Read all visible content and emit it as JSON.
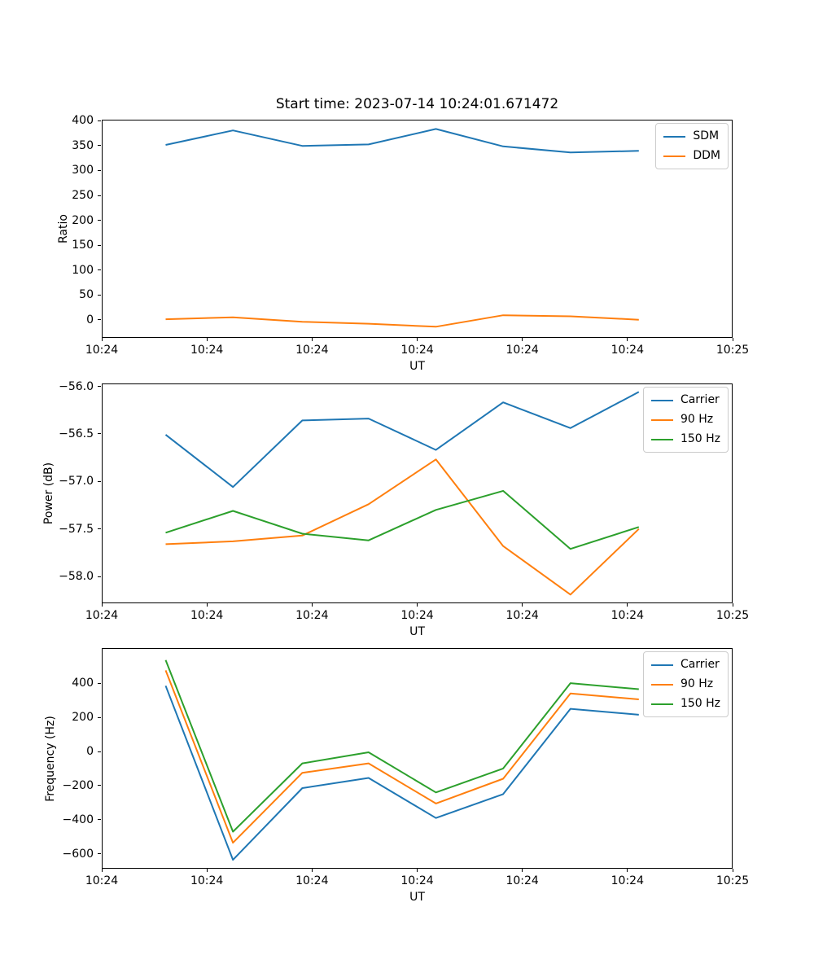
{
  "figure": {
    "title": "Start time: 2023-07-14 10:24:01.671472",
    "background_color": "#ffffff",
    "palette": {
      "blue": "#1f77b4",
      "orange": "#ff7f0e",
      "green": "#2ca02c"
    }
  },
  "chart_data": [
    {
      "type": "line",
      "title": "Start time: 2023-07-14 10:24:01.671472",
      "xlabel": "UT",
      "ylabel": "Ratio",
      "grid": false,
      "legend_position": "upper right",
      "legend": [
        "SDM",
        "DDM"
      ],
      "xlim": [
        0,
        60
      ],
      "x_tick_values": [
        0,
        10,
        20,
        30,
        40,
        50,
        60
      ],
      "x_tick_labels": [
        "10:24",
        "10:24",
        "10:24",
        "10:24",
        "10:24",
        "10:24",
        "10:25"
      ],
      "ylim": [
        -36,
        402
      ],
      "y_tick_values": [
        0,
        50,
        100,
        150,
        200,
        250,
        300,
        350,
        400
      ],
      "y_tick_labels": [
        "0",
        "50",
        "100",
        "150",
        "200",
        "250",
        "300",
        "350",
        "400"
      ],
      "x_values_seconds": [
        6.0,
        12.4,
        19.0,
        25.3,
        31.7,
        38.1,
        44.5,
        51.0
      ],
      "series": [
        {
          "name": "SDM",
          "color": "#1f77b4",
          "values": [
            353,
            382,
            351,
            354,
            385,
            350,
            338,
            341
          ]
        },
        {
          "name": "DDM",
          "color": "#ff7f0e",
          "values": [
            3,
            7,
            -2,
            -6,
            -12,
            11,
            9,
            2
          ]
        }
      ]
    },
    {
      "type": "line",
      "title": "",
      "xlabel": "UT",
      "ylabel": "Power (dB)",
      "grid": false,
      "legend_position": "upper right",
      "legend": [
        "Carrier",
        "90 Hz",
        "150 Hz"
      ],
      "xlim": [
        0,
        60
      ],
      "x_tick_values": [
        0,
        10,
        20,
        30,
        40,
        50,
        60
      ],
      "x_tick_labels": [
        "10:24",
        "10:24",
        "10:24",
        "10:24",
        "10:24",
        "10:24",
        "10:25"
      ],
      "ylim": [
        -58.28,
        -55.97
      ],
      "y_tick_values": [
        -56.0,
        -56.5,
        -57.0,
        -57.5,
        -58.0
      ],
      "y_tick_labels": [
        "−56.0",
        "−56.5",
        "−57.0",
        "−57.5",
        "−58.0"
      ],
      "x_values_seconds": [
        6.0,
        12.4,
        19.0,
        25.3,
        31.7,
        38.1,
        44.5,
        51.0
      ],
      "series": [
        {
          "name": "Carrier",
          "color": "#1f77b4",
          "values": [
            -56.5,
            -57.05,
            -56.35,
            -56.33,
            -56.66,
            -56.16,
            -56.43,
            -56.05
          ]
        },
        {
          "name": "90 Hz",
          "color": "#ff7f0e",
          "values": [
            -57.65,
            -57.62,
            -57.56,
            -57.23,
            -56.76,
            -57.67,
            -58.18,
            -57.49
          ]
        },
        {
          "name": "150 Hz",
          "color": "#2ca02c",
          "values": [
            -57.53,
            -57.3,
            -57.54,
            -57.61,
            -57.29,
            -57.09,
            -57.7,
            -57.47
          ]
        }
      ]
    },
    {
      "type": "line",
      "title": "",
      "xlabel": "UT",
      "ylabel": "Frequency (Hz)",
      "grid": false,
      "legend_position": "upper right",
      "legend": [
        "Carrier",
        "90 Hz",
        "150 Hz"
      ],
      "xlim": [
        0,
        60
      ],
      "x_tick_values": [
        0,
        10,
        20,
        30,
        40,
        50,
        60
      ],
      "x_tick_labels": [
        "10:24",
        "10:24",
        "10:24",
        "10:24",
        "10:24",
        "10:24",
        "10:25"
      ],
      "ylim": [
        -687,
        606
      ],
      "y_tick_values": [
        400,
        200,
        0,
        -200,
        -400,
        -600
      ],
      "y_tick_labels": [
        "400",
        "200",
        "0",
        "−200",
        "−400",
        "−600"
      ],
      "x_values_seconds": [
        6.0,
        12.4,
        19.0,
        25.3,
        31.7,
        38.1,
        44.5,
        51.0
      ],
      "series": [
        {
          "name": "Carrier",
          "color": "#1f77b4",
          "values": [
            390,
            -630,
            -210,
            -150,
            -385,
            -245,
            255,
            220
          ]
        },
        {
          "name": "90 Hz",
          "color": "#ff7f0e",
          "values": [
            480,
            -530,
            -120,
            -65,
            -300,
            -155,
            345,
            310
          ]
        },
        {
          "name": "150 Hz",
          "color": "#2ca02c",
          "values": [
            540,
            -465,
            -65,
            0,
            -235,
            -95,
            405,
            370
          ]
        }
      ]
    }
  ]
}
